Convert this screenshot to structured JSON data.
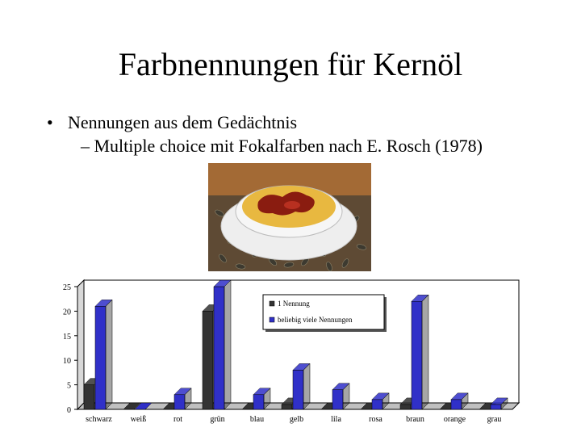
{
  "slide": {
    "title": "Farbnennungen für Kernöl",
    "bullet_marker": "•",
    "bullet1": "Nennungen aus dem Gedächtnis",
    "bullet2": "– Multiple choice mit Fokalfarben nach E. Rosch (1978)"
  },
  "image": {
    "subject": "pumpkin-seed-oil-soup-photo"
  },
  "colors": {
    "series1": "#333333",
    "series2": "#3030c8",
    "wall": "#ffffff"
  },
  "chart_data": {
    "type": "bar",
    "categories": [
      "schwarz",
      "weiß",
      "rot",
      "grün",
      "blau",
      "gelb",
      "lila",
      "rosa",
      "braun",
      "orange",
      "grau"
    ],
    "series": [
      {
        "name": "1 Nennung",
        "values": [
          5,
          0,
          0,
          20,
          0,
          1,
          0,
          0,
          1,
          0,
          0
        ]
      },
      {
        "name": "beliebig viele Nennungen",
        "values": [
          21,
          0,
          3,
          25,
          3,
          8,
          4,
          2,
          22,
          2,
          1
        ]
      }
    ],
    "yticks": [
      0,
      5,
      10,
      15,
      20,
      25
    ],
    "ylim": [
      0,
      25
    ],
    "legend_position": "top-right",
    "grid": false
  }
}
